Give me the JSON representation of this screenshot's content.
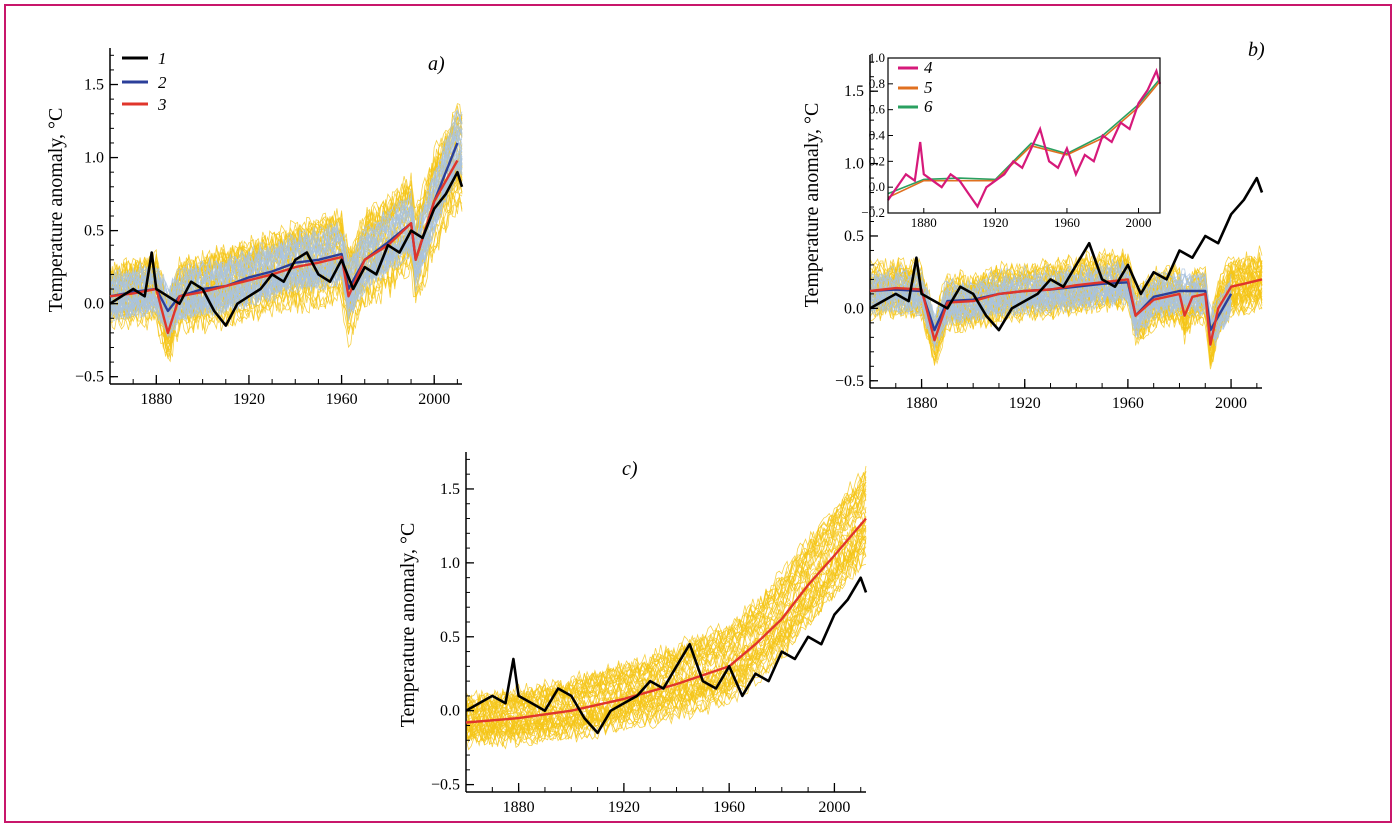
{
  "colors": {
    "border": "#c8176b",
    "observed": "#000000",
    "ensemble_mean_blue": "#2b3f9a",
    "ensemble_blue_thin": "#a9c3e0",
    "ensemble_mean_red": "#e0352b",
    "ensemble_yellow_thin": "#f5c518",
    "inset_4": "#d6197a",
    "inset_5": "#e07020",
    "inset_6": "#2aa060"
  },
  "chart_data": [
    {
      "id": "a",
      "type": "line",
      "panel_label": "a)",
      "ylabel": "Temperature anomaly, °C",
      "xlim": [
        1860,
        2012
      ],
      "ylim": [
        -0.55,
        1.75
      ],
      "xticks": [
        "1880",
        "1920",
        "1960",
        "2000"
      ],
      "yticks": [
        "−0.5",
        "0.0",
        "0.5",
        "1.0",
        "1.5"
      ],
      "legend": {
        "position": "top-left",
        "entries": [
          "1",
          "2",
          "3"
        ]
      },
      "series": [
        {
          "name": "1",
          "color": "#000000",
          "x": [
            1860,
            1865,
            1870,
            1875,
            1878,
            1880,
            1885,
            1890,
            1895,
            1900,
            1905,
            1910,
            1915,
            1920,
            1925,
            1930,
            1935,
            1940,
            1945,
            1950,
            1955,
            1960,
            1965,
            1970,
            1975,
            1980,
            1985,
            1990,
            1995,
            2000,
            2005,
            2010,
            2012
          ],
          "values": [
            0.0,
            0.05,
            0.1,
            0.05,
            0.35,
            0.1,
            0.05,
            0.0,
            0.15,
            0.1,
            -0.05,
            -0.15,
            0.0,
            0.05,
            0.1,
            0.2,
            0.15,
            0.3,
            0.35,
            0.2,
            0.15,
            0.3,
            0.1,
            0.25,
            0.2,
            0.4,
            0.35,
            0.5,
            0.45,
            0.65,
            0.75,
            0.9,
            0.8
          ]
        },
        {
          "name": "2",
          "color": "#2b3f9a",
          "x": [
            1860,
            1870,
            1880,
            1885,
            1890,
            1900,
            1910,
            1920,
            1930,
            1940,
            1950,
            1960,
            1963,
            1970,
            1980,
            1990,
            1992,
            2000,
            2010
          ],
          "values": [
            0.05,
            0.08,
            0.1,
            -0.05,
            0.05,
            0.1,
            0.12,
            0.18,
            0.22,
            0.28,
            0.3,
            0.34,
            0.1,
            0.3,
            0.42,
            0.55,
            0.3,
            0.7,
            1.1
          ]
        },
        {
          "name": "3",
          "color": "#e0352b",
          "x": [
            1860,
            1870,
            1880,
            1885,
            1890,
            1900,
            1910,
            1920,
            1930,
            1940,
            1950,
            1960,
            1963,
            1970,
            1980,
            1990,
            1992,
            2000,
            2010
          ],
          "values": [
            0.05,
            0.07,
            0.1,
            -0.2,
            0.05,
            0.08,
            0.12,
            0.16,
            0.2,
            0.25,
            0.28,
            0.32,
            0.05,
            0.3,
            0.4,
            0.55,
            0.3,
            0.7,
            0.98
          ]
        }
      ]
    },
    {
      "id": "b",
      "type": "line",
      "panel_label": "b)",
      "ylabel": "Temperature anomaly, °C",
      "xlim": [
        1860,
        2012
      ],
      "ylim": [
        -0.55,
        1.75
      ],
      "xticks": [
        "1880",
        "1920",
        "1960",
        "2000"
      ],
      "yticks": [
        "−0.5",
        "0.0",
        "0.5",
        "1.0",
        "1.5"
      ],
      "series": [
        {
          "name": "1",
          "color": "#000000",
          "x": [
            1860,
            1865,
            1870,
            1875,
            1878,
            1880,
            1885,
            1890,
            1895,
            1900,
            1905,
            1910,
            1915,
            1920,
            1925,
            1930,
            1935,
            1940,
            1945,
            1950,
            1955,
            1960,
            1965,
            1970,
            1975,
            1980,
            1985,
            1990,
            1995,
            2000,
            2005,
            2010,
            2012
          ],
          "values": [
            0.0,
            0.05,
            0.1,
            0.05,
            0.35,
            0.1,
            0.05,
            0.0,
            0.15,
            0.1,
            -0.05,
            -0.15,
            0.0,
            0.05,
            0.1,
            0.2,
            0.15,
            0.3,
            0.45,
            0.2,
            0.15,
            0.3,
            0.1,
            0.25,
            0.2,
            0.4,
            0.35,
            0.5,
            0.45,
            0.65,
            0.75,
            0.9,
            0.8
          ]
        },
        {
          "name": "2",
          "color": "#2b3f9a",
          "x": [
            1860,
            1870,
            1880,
            1885,
            1890,
            1900,
            1910,
            1920,
            1930,
            1940,
            1950,
            1960,
            1963,
            1970,
            1980,
            1990,
            1992,
            2000
          ],
          "values": [
            0.12,
            0.13,
            0.12,
            -0.15,
            0.05,
            0.06,
            0.1,
            0.12,
            0.13,
            0.15,
            0.17,
            0.18,
            -0.05,
            0.08,
            0.12,
            0.12,
            -0.15,
            0.1
          ]
        },
        {
          "name": "3",
          "color": "#e0352b",
          "x": [
            1860,
            1870,
            1880,
            1885,
            1890,
            1900,
            1910,
            1920,
            1930,
            1940,
            1950,
            1960,
            1963,
            1970,
            1980,
            1982,
            1985,
            1990,
            1992,
            1995,
            2000,
            2005,
            2012
          ],
          "values": [
            0.12,
            0.14,
            0.13,
            -0.22,
            0.04,
            0.05,
            0.1,
            0.12,
            0.13,
            0.16,
            0.18,
            0.2,
            -0.05,
            0.06,
            0.1,
            -0.05,
            0.08,
            0.1,
            -0.25,
            0.0,
            0.15,
            0.17,
            0.2
          ]
        }
      ],
      "inset": {
        "xlim": [
          1860,
          2012
        ],
        "ylim": [
          -0.2,
          1.0
        ],
        "xticks": [
          "1880",
          "1920",
          "1960",
          "2000"
        ],
        "yticks": [
          "−0.2",
          "0.0",
          "0.2",
          "0.4",
          "0.6",
          "0.8",
          "1.0"
        ],
        "legend": {
          "position": "top-left",
          "entries": [
            "4",
            "5",
            "6"
          ]
        },
        "series": [
          {
            "name": "4",
            "color": "#d6197a",
            "x": [
              1860,
              1865,
              1870,
              1875,
              1878,
              1880,
              1885,
              1890,
              1895,
              1900,
              1905,
              1910,
              1915,
              1920,
              1925,
              1930,
              1935,
              1940,
              1945,
              1950,
              1955,
              1960,
              1965,
              1970,
              1975,
              1980,
              1985,
              1990,
              1995,
              2000,
              2005,
              2010,
              2012
            ],
            "values": [
              -0.1,
              0.0,
              0.1,
              0.05,
              0.35,
              0.1,
              0.05,
              0.0,
              0.1,
              0.05,
              -0.05,
              -0.15,
              0.0,
              0.05,
              0.1,
              0.2,
              0.15,
              0.3,
              0.45,
              0.2,
              0.15,
              0.3,
              0.1,
              0.25,
              0.2,
              0.4,
              0.35,
              0.5,
              0.45,
              0.65,
              0.75,
              0.9,
              0.8
            ]
          },
          {
            "name": "5",
            "color": "#e07020",
            "x": [
              1860,
              1880,
              1900,
              1920,
              1940,
              1960,
              1980,
              2000,
              2012
            ],
            "values": [
              -0.08,
              0.05,
              0.05,
              0.05,
              0.32,
              0.25,
              0.38,
              0.62,
              0.82
            ]
          },
          {
            "name": "6",
            "color": "#2aa060",
            "x": [
              1860,
              1880,
              1900,
              1920,
              1940,
              1960,
              1980,
              2000,
              2012
            ],
            "values": [
              -0.05,
              0.06,
              0.07,
              0.06,
              0.34,
              0.26,
              0.4,
              0.64,
              0.84
            ]
          }
        ]
      }
    },
    {
      "id": "c",
      "type": "line",
      "panel_label": "c)",
      "ylabel": "Temperature anomaly, °C",
      "xlim": [
        1860,
        2012
      ],
      "ylim": [
        -0.55,
        1.75
      ],
      "xticks": [
        "1880",
        "1920",
        "1960",
        "2000"
      ],
      "yticks": [
        "−0.5",
        "0.0",
        "0.5",
        "1.0",
        "1.5"
      ],
      "series": [
        {
          "name": "1",
          "color": "#000000",
          "x": [
            1860,
            1865,
            1870,
            1875,
            1878,
            1880,
            1885,
            1890,
            1895,
            1900,
            1905,
            1910,
            1915,
            1920,
            1925,
            1930,
            1935,
            1940,
            1945,
            1950,
            1955,
            1960,
            1965,
            1970,
            1975,
            1980,
            1985,
            1990,
            1995,
            2000,
            2005,
            2010,
            2012
          ],
          "values": [
            0.0,
            0.05,
            0.1,
            0.05,
            0.35,
            0.1,
            0.05,
            0.0,
            0.15,
            0.1,
            -0.05,
            -0.15,
            0.0,
            0.05,
            0.1,
            0.2,
            0.15,
            0.3,
            0.45,
            0.2,
            0.15,
            0.3,
            0.1,
            0.25,
            0.2,
            0.4,
            0.35,
            0.5,
            0.45,
            0.65,
            0.75,
            0.9,
            0.8
          ]
        },
        {
          "name": "3",
          "color": "#e0352b",
          "x": [
            1860,
            1880,
            1900,
            1920,
            1940,
            1960,
            1970,
            1980,
            1990,
            2000,
            2012
          ],
          "values": [
            -0.08,
            -0.05,
            0.0,
            0.08,
            0.18,
            0.3,
            0.45,
            0.62,
            0.85,
            1.05,
            1.3
          ]
        }
      ]
    }
  ]
}
